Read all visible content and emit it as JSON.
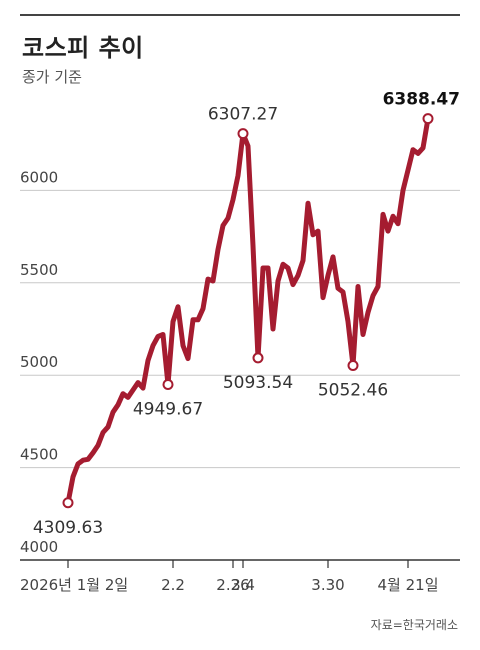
{
  "header": {
    "title": "코스피 추이",
    "subtitle": "종가 기준",
    "source": "자료=한국거래소"
  },
  "colors": {
    "line": "#a51c30",
    "grid": "#c8c8c8",
    "axis": "#333333"
  },
  "chart_data": {
    "type": "line",
    "title": "코스피 추이",
    "subtitle": "종가 기준",
    "ylim": [
      4000,
      6500
    ],
    "yticks": [
      {
        "value": 4000,
        "label": "4000"
      },
      {
        "value": 4500,
        "label": "4500"
      },
      {
        "value": 5000,
        "label": "5000"
      },
      {
        "value": 5500,
        "label": "5500"
      },
      {
        "value": 6000,
        "label": "6000"
      }
    ],
    "grid": true,
    "xticks": [
      {
        "index": 0,
        "label": "2026년 1월 2일",
        "anchor": "start"
      },
      {
        "index": 21,
        "label": "2.2",
        "anchor": "middle"
      },
      {
        "index": 33,
        "label": "2.26",
        "anchor": "middle"
      },
      {
        "index": 35,
        "label": "3.4",
        "anchor": "middle"
      },
      {
        "index": 52,
        "label": "3.30",
        "anchor": "middle"
      },
      {
        "index": 68,
        "label": "4월 21일",
        "anchor": "middle"
      }
    ],
    "series": [
      {
        "values": [
          4309.63,
          4450,
          4520,
          4540,
          4545,
          4580,
          4620,
          4690,
          4720,
          4800,
          4840,
          4900,
          4880,
          4920,
          4960,
          4930,
          5080,
          5160,
          5210,
          5220,
          4949.67,
          5290,
          5370,
          5160,
          5090,
          5300,
          5300,
          5360,
          5520,
          5510,
          5680,
          5810,
          5850,
          5950,
          6080,
          6307.27,
          6240,
          5700,
          5093.54,
          5580,
          5580,
          5250,
          5510,
          5600,
          5580,
          5490,
          5540,
          5620,
          5930,
          5760,
          5780,
          5420,
          5540,
          5640,
          5470,
          5450,
          5290,
          5052.46,
          5480,
          5220,
          5340,
          5430,
          5480,
          5870,
          5780,
          5860,
          5820,
          6000,
          6110,
          6220,
          6200,
          6230,
          6388.47
        ]
      }
    ],
    "annotations": [
      {
        "index": 0,
        "value": 4309.63,
        "label": "4309.63",
        "pos": "below",
        "bold": false
      },
      {
        "index": 20,
        "value": 4949.67,
        "label": "4949.67",
        "pos": "below",
        "bold": false
      },
      {
        "index": 35,
        "value": 6307.27,
        "label": "6307.27",
        "pos": "above",
        "bold": false
      },
      {
        "index": 38,
        "value": 5093.54,
        "label": "5093.54",
        "pos": "below",
        "bold": false
      },
      {
        "index": 57,
        "value": 5052.46,
        "label": "5052.46",
        "pos": "below",
        "bold": false
      },
      {
        "index": 72,
        "value": 6388.47,
        "label": "6388.47",
        "pos": "above",
        "bold": true
      }
    ]
  }
}
